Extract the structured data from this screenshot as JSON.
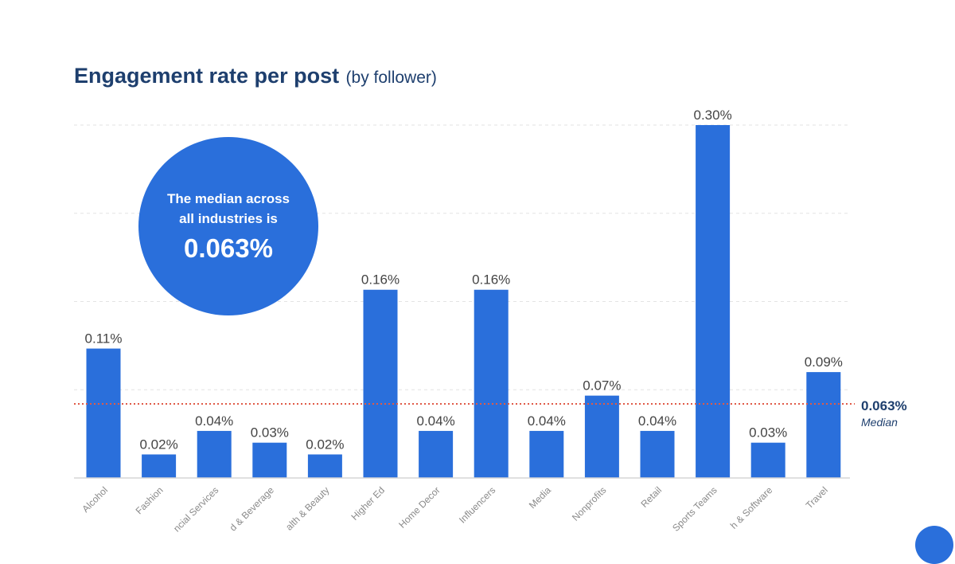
{
  "chart_data": {
    "type": "bar",
    "title": "Engagement rate per post",
    "subtitle": "(by follower)",
    "categories": [
      "Alcohol",
      "Fashion",
      "ncial Services",
      "d & Beverage",
      "alth & Beauty",
      "Higher Ed",
      "Home Decor",
      "Influencers",
      "Media",
      "Nonprofits",
      "Retail",
      "Sports Teams",
      "h & Software",
      "Travel"
    ],
    "values": [
      0.11,
      0.02,
      0.04,
      0.03,
      0.02,
      0.16,
      0.04,
      0.16,
      0.04,
      0.07,
      0.04,
      0.3,
      0.03,
      0.09
    ],
    "value_labels": [
      "0.11%",
      "0.02%",
      "0.04%",
      "0.03%",
      "0.02%",
      "0.16%",
      "0.04%",
      "0.16%",
      "0.04%",
      "0.07%",
      "0.04%",
      "0.30%",
      "0.03%",
      "0.09%"
    ],
    "ylim": [
      0,
      0.3
    ],
    "grid": true,
    "bar_color": "#2a6fdb",
    "median": {
      "value": 0.063,
      "value_label": "0.063%",
      "label": "Median",
      "line_color": "#e05a47"
    }
  },
  "callout": {
    "line1": "The median across",
    "line2": "all industries is",
    "value": "0.063%"
  }
}
